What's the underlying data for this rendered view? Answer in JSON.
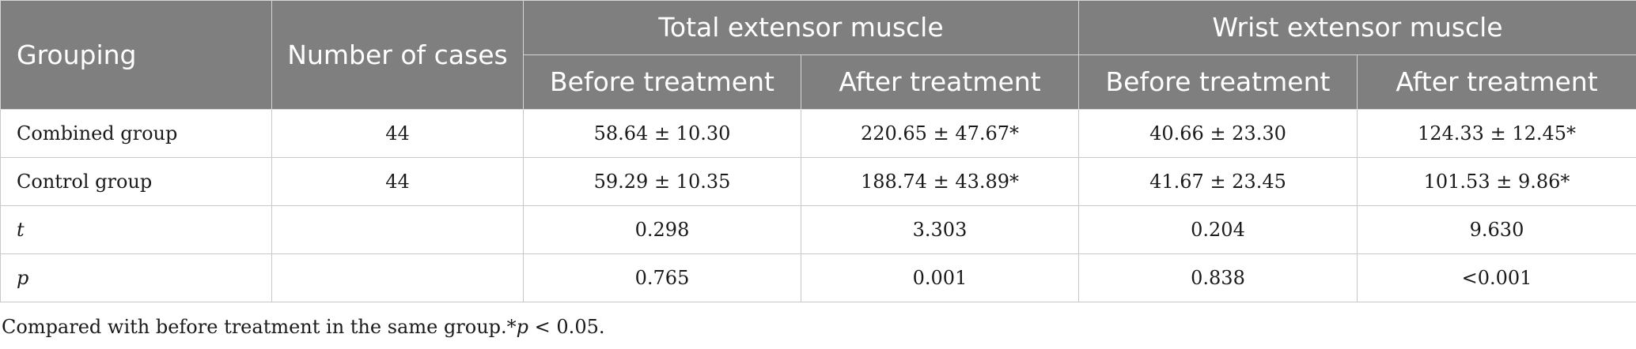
{
  "header": {
    "grouping": "Grouping",
    "number_of_cases": "Number of cases",
    "total_extensor": "Total extensor muscle",
    "wrist_extensor": "Wrist extensor muscle",
    "before_treatment": "Before treatment",
    "after_treatment": "After treatment"
  },
  "rows": [
    {
      "group": "Combined group",
      "cases": "44",
      "total_before": "58.64 ± 10.30",
      "total_after": "220.65 ± 47.67*",
      "wrist_before": "40.66 ± 23.30",
      "wrist_after": "124.33 ± 12.45*"
    },
    {
      "group": "Control group",
      "cases": "44",
      "total_before": "59.29 ± 10.35",
      "total_after": "188.74 ± 43.89*",
      "wrist_before": "41.67 ± 23.45",
      "wrist_after": "101.53 ± 9.86*"
    },
    {
      "group": "t",
      "cases": "",
      "total_before": "0.298",
      "total_after": "3.303",
      "wrist_before": "0.204",
      "wrist_after": "9.630"
    },
    {
      "group": "p",
      "cases": "",
      "total_before": "0.765",
      "total_after": "0.001",
      "wrist_before": "0.838",
      "wrist_after": "<0.001"
    }
  ],
  "footnote": {
    "text": "Compared with before treatment in the same group.*",
    "p_symbol": "p",
    "threshold": " < 0.05."
  }
}
